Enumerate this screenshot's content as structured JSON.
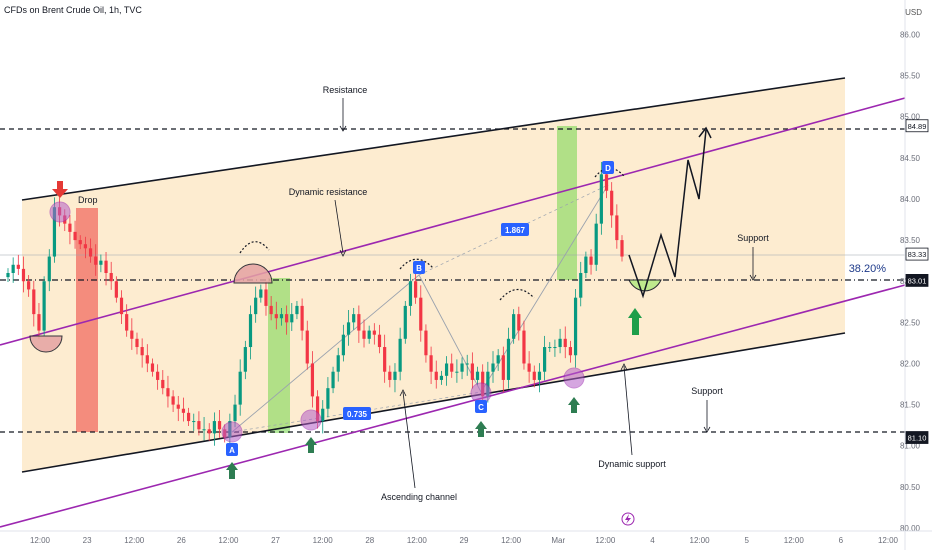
{
  "header": {
    "symbol_title": "CFDs on Brent Crude Oil, 1h, TVC",
    "currency": "USD"
  },
  "colors": {
    "up": "#089981",
    "down": "#f23645",
    "channel_fill": "#fde9c8",
    "purple": "#9c27b0",
    "green_zone": "#7ed957",
    "red_zone": "#f0645a",
    "fib": "#1e3a8a",
    "label_blue": "#2962ff"
  },
  "chart_data": {
    "type": "candlestick",
    "title": "CFDs on Brent Crude Oil, 1h, TVC",
    "ylabel": "USD",
    "ylim": [
      80.0,
      86.2
    ],
    "y_ticks": [
      80.0,
      80.5,
      81.0,
      81.5,
      82.0,
      82.5,
      83.0,
      83.5,
      84.0,
      84.5,
      85.0,
      85.5,
      86.0
    ],
    "x_ticks": [
      "12:00",
      "23",
      "12:00",
      "26",
      "12:00",
      "27",
      "12:00",
      "28",
      "12:00",
      "29",
      "12:00",
      "Mar",
      "12:00",
      "4",
      "12:00",
      "5",
      "12:00",
      "6",
      "12:00"
    ],
    "price_labels": [
      {
        "value": "84.89",
        "highlight": false
      },
      {
        "value": "83.33",
        "highlight": false
      },
      {
        "value": "83.01",
        "highlight": true
      },
      {
        "value": "81.10",
        "highlight": true
      }
    ],
    "horizontal_levels": [
      84.89,
      83.01,
      81.1
    ],
    "fib_label": "38.20%",
    "closes": [
      83.1,
      83.2,
      83.15,
      83.0,
      82.9,
      82.6,
      82.4,
      83.0,
      83.3,
      83.9,
      83.8,
      83.7,
      83.6,
      83.5,
      83.45,
      83.4,
      83.3,
      83.2,
      83.25,
      83.1,
      83.0,
      82.8,
      82.6,
      82.4,
      82.3,
      82.2,
      82.1,
      82.0,
      81.9,
      81.8,
      81.7,
      81.6,
      81.5,
      81.45,
      81.4,
      81.3,
      81.3,
      81.2,
      81.2,
      81.15,
      81.3,
      81.2,
      81.1,
      81.3,
      81.5,
      81.9,
      82.2,
      82.6,
      82.8,
      82.9,
      82.7,
      82.6,
      82.55,
      82.6,
      82.5,
      82.6,
      82.7,
      82.4,
      82.0,
      81.6,
      81.3,
      81.45,
      81.7,
      81.9,
      82.1,
      82.35,
      82.5,
      82.6,
      82.4,
      82.3,
      82.4,
      82.35,
      82.2,
      81.9,
      81.8,
      81.9,
      82.3,
      82.7,
      83.0,
      82.8,
      82.4,
      82.1,
      81.9,
      81.8,
      81.85,
      82.0,
      81.9,
      81.9,
      82.0,
      82.0,
      81.8,
      81.9,
      81.6,
      81.9,
      82.0,
      82.1,
      81.8,
      82.3,
      82.6,
      82.4,
      82.0,
      81.9,
      81.8,
      81.9,
      82.2,
      82.2,
      82.2,
      82.3,
      82.2,
      82.1,
      82.8,
      83.1,
      83.3,
      83.2,
      83.7,
      84.3,
      84.1,
      83.8,
      83.5,
      83.3
    ],
    "projection_path": [
      83.1,
      82.8,
      83.5,
      83.0,
      84.6,
      84.0,
      84.9
    ],
    "annotations": {
      "resistance": "Resistance",
      "dynamic_resistance": "Dynamic resistance",
      "drop": "Drop",
      "support_upper": "Support",
      "support_lower": "Support",
      "dynamic_support": "Dynamic support",
      "ascending_channel": "Ascending channel",
      "point_a": "A",
      "point_b": "B",
      "point_c": "C",
      "point_d": "D",
      "ratio_bc": "0.735",
      "ratio_cd": "1.867"
    }
  }
}
